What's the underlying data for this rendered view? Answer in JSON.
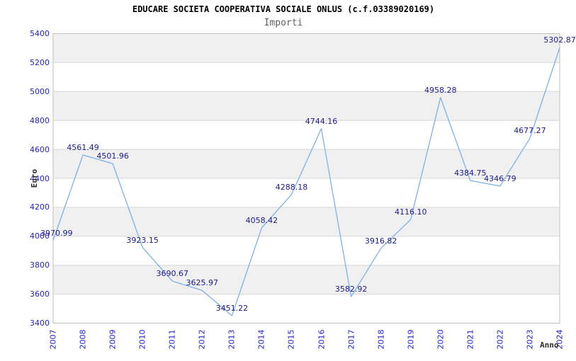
{
  "chart_data": {
    "type": "line",
    "title": "EDUCARE SOCIETA COOPERATIVA SOCIALE ONLUS (c.f.03389020169)",
    "subtitle": "Importi",
    "xlabel": "Anno",
    "ylabel": "Euro",
    "categories": [
      "2007",
      "2008",
      "2009",
      "2010",
      "2011",
      "2012",
      "2013",
      "2014",
      "2015",
      "2016",
      "2017",
      "2018",
      "2019",
      "2020",
      "2021",
      "2022",
      "2023",
      "2024"
    ],
    "series": [
      {
        "name": "Importi",
        "values": [
          3970.99,
          4561.49,
          4501.96,
          3923.15,
          3690.67,
          3625.97,
          3451.22,
          4058.42,
          4288.18,
          4744.16,
          3582.92,
          3916.82,
          4116.1,
          4958.28,
          4384.75,
          4346.79,
          4677.27,
          5302.87
        ]
      }
    ],
    "point_labels": [
      "3970.99",
      "4561.49",
      "4501.96",
      "3923.15",
      "3690.67",
      "3625.97",
      "3451.22",
      "4058.42",
      "4288.18",
      "4744.16",
      "3582.92",
      "3916.82",
      "4116.10",
      "4958.28",
      "4384.75",
      "4346.79",
      "4677.27",
      "5302.87"
    ],
    "ylim": [
      3400,
      5400
    ],
    "yticks": [
      3400,
      3600,
      3800,
      4000,
      4200,
      4400,
      4600,
      4800,
      5000,
      5200,
      5400
    ],
    "grid": true,
    "legend": "none",
    "colors": {
      "line": "#7db1e8",
      "tick_label": "#2222cc",
      "point_label": "#1b1b8e",
      "band_gray": "#f0f0f0",
      "band_white": "#ffffff",
      "gridline": "#d8d8d8",
      "plot_border": "#c0c0c0",
      "title": "#000000",
      "subtitle": "#5f5f5f",
      "axis_title": "#2b2b2b"
    }
  }
}
